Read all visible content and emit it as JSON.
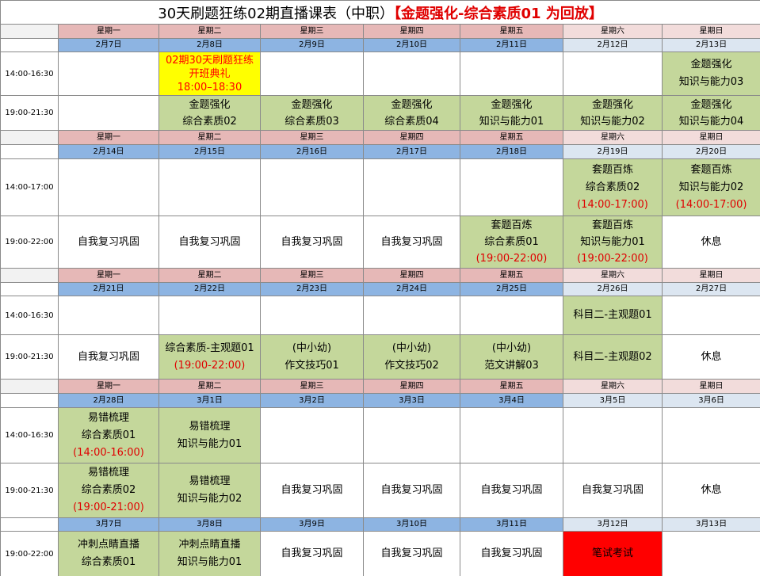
{
  "header": {
    "title": "30天刷题狂练02期直播课表（中职）",
    "title_note": "【金题强化-综合素质01 为回放】"
  },
  "blocks": [
    {
      "weekdays": [
        "星期一",
        "星期二",
        "星期三",
        "星期四",
        "星期五",
        "星期六",
        "星期日"
      ],
      "dates": [
        "2月7日",
        "2月8日",
        "2月9日",
        "2月10日",
        "2月11日",
        "2月12日",
        "2月13日"
      ],
      "rows": [
        {
          "time": "14:00-16:30",
          "cells": [
            null,
            {
              "lines": [
                "02期30天刷题狂练",
                "开班典礼",
                "18:00–18:30"
              ],
              "fill": "#ffff00",
              "text_color": "#ff0000"
            },
            null,
            null,
            null,
            null,
            {
              "lines": [
                "金题强化",
                "知识与能力03"
              ],
              "fill": "#c4d79b"
            }
          ]
        },
        {
          "time": "19:00-21:30",
          "cells": [
            null,
            {
              "lines": [
                "金题强化",
                "综合素质02"
              ],
              "fill": "#c4d79b"
            },
            {
              "lines": [
                "金题强化",
                "综合素质03"
              ],
              "fill": "#c4d79b"
            },
            {
              "lines": [
                "金题强化",
                "综合素质04"
              ],
              "fill": "#c4d79b"
            },
            {
              "lines": [
                "金题强化",
                "知识与能力01"
              ],
              "fill": "#c4d79b"
            },
            {
              "lines": [
                "金题强化",
                "知识与能力02"
              ],
              "fill": "#c4d79b"
            },
            {
              "lines": [
                "金题强化",
                "知识与能力04"
              ],
              "fill": "#c4d79b"
            }
          ]
        }
      ]
    },
    {
      "weekdays": [
        "星期一",
        "星期二",
        "星期三",
        "星期四",
        "星期五",
        "星期六",
        "星期日"
      ],
      "dates": [
        "2月14日",
        "2月15日",
        "2月16日",
        "2月17日",
        "2月18日",
        "2月19日",
        "2月20日"
      ],
      "rows": [
        {
          "time": "14:00-17:00",
          "cells": [
            null,
            null,
            null,
            null,
            null,
            {
              "lines": [
                "套题百炼",
                "综合素质02"
              ],
              "note": "(14:00-17:00)",
              "fill": "#c4d79b"
            },
            {
              "lines": [
                "套题百炼",
                "知识与能力02"
              ],
              "note": "(14:00-17:00)",
              "fill": "#c4d79b"
            }
          ]
        },
        {
          "time": "19:00-22:00",
          "cells": [
            {
              "lines": [
                "自我复习巩固"
              ]
            },
            {
              "lines": [
                "自我复习巩固"
              ]
            },
            {
              "lines": [
                "自我复习巩固"
              ]
            },
            {
              "lines": [
                "自我复习巩固"
              ]
            },
            {
              "lines": [
                "套题百炼",
                "综合素质01"
              ],
              "note": "(19:00-22:00)",
              "fill": "#c4d79b"
            },
            {
              "lines": [
                "套题百炼",
                "知识与能力01"
              ],
              "note": "(19:00-22:00)",
              "fill": "#c4d79b"
            },
            {
              "lines": [
                "休息"
              ]
            }
          ]
        }
      ]
    },
    {
      "weekdays": [
        "星期一",
        "星期二",
        "星期三",
        "星期四",
        "星期五",
        "星期六",
        "星期日"
      ],
      "dates": [
        "2月21日",
        "2月22日",
        "2月23日",
        "2月24日",
        "2月25日",
        "2月26日",
        "2月27日"
      ],
      "rows": [
        {
          "time": "14:00-16:30",
          "cells": [
            null,
            null,
            null,
            null,
            null,
            {
              "lines": [
                "科目二-主观题01"
              ],
              "fill": "#c4d79b"
            },
            null
          ]
        },
        {
          "time": "19:00-21:30",
          "cells": [
            {
              "lines": [
                "自我复习巩固"
              ]
            },
            {
              "lines": [
                "综合素质-主观题01"
              ],
              "note": "(19:00-22:00)",
              "fill": "#c4d79b"
            },
            {
              "lines": [
                "(中小幼)",
                "作文技巧01"
              ],
              "fill": "#c4d79b"
            },
            {
              "lines": [
                "(中小幼)",
                "作文技巧02"
              ],
              "fill": "#c4d79b"
            },
            {
              "lines": [
                "(中小幼)",
                "范文讲解03"
              ],
              "fill": "#c4d79b"
            },
            {
              "lines": [
                "科目二-主观题02"
              ],
              "fill": "#c4d79b"
            },
            {
              "lines": [
                "休息"
              ]
            }
          ]
        }
      ]
    },
    {
      "weekdays": [
        "星期一",
        "星期二",
        "星期三",
        "星期四",
        "星期五",
        "星期六",
        "星期日"
      ],
      "dates": [
        "2月28日",
        "3月1日",
        "3月2日",
        "3月3日",
        "3月4日",
        "3月5日",
        "3月6日"
      ],
      "rows": [
        {
          "time": "14:00-16:30",
          "cells": [
            {
              "lines": [
                "易错梳理",
                "综合素质01"
              ],
              "note": "(14:00-16:00)",
              "fill": "#c4d79b"
            },
            {
              "lines": [
                "易错梳理",
                "知识与能力01"
              ],
              "fill": "#c4d79b"
            },
            null,
            null,
            null,
            null,
            null
          ]
        },
        {
          "time": "19:00-21:30",
          "cells": [
            {
              "lines": [
                "易错梳理",
                "综合素质02"
              ],
              "note": "(19:00-21:00)",
              "fill": "#c4d79b"
            },
            {
              "lines": [
                "易错梳理",
                "知识与能力02"
              ],
              "fill": "#c4d79b"
            },
            {
              "lines": [
                "自我复习巩固"
              ]
            },
            {
              "lines": [
                "自我复习巩固"
              ]
            },
            {
              "lines": [
                "自我复习巩固"
              ]
            },
            {
              "lines": [
                "自我复习巩固"
              ]
            },
            {
              "lines": [
                "休息"
              ]
            }
          ]
        }
      ]
    },
    {
      "dates": [
        "3月7日",
        "3月8日",
        "3月9日",
        "3月10日",
        "3月11日",
        "3月12日",
        "3月13日"
      ],
      "rows": [
        {
          "time": "19:00-22:00",
          "cells": [
            {
              "lines": [
                "冲刺点睛直播",
                "综合素质01"
              ],
              "fill": "#c4d79b"
            },
            {
              "lines": [
                "冲刺点睛直播",
                "知识与能力01"
              ],
              "fill": "#c4d79b"
            },
            {
              "lines": [
                "自我复习巩固"
              ]
            },
            {
              "lines": [
                "自我复习巩固"
              ]
            },
            {
              "lines": [
                "自我复习巩固"
              ]
            },
            {
              "lines": [
                "笔试考试"
              ],
              "fill": "#ff0000"
            },
            null
          ]
        }
      ]
    }
  ]
}
